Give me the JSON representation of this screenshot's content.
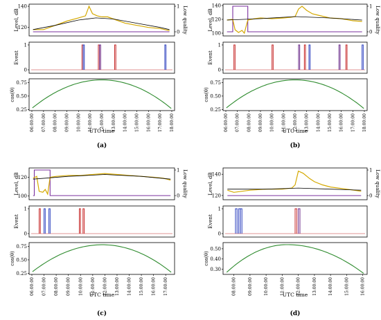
{
  "colors": {
    "level": "#d4a800",
    "trend": "#000000",
    "low_quality": "#7a2f9e",
    "event_red": "#c62828",
    "event_blue": "#2b3fbf",
    "event_purple": "#6a2a8a",
    "cos": "#2e8b2e",
    "frame": "#000000"
  },
  "chart_data": [
    {
      "label": "(a)",
      "type": "line",
      "xlabel": "UTC time",
      "time_start": 6.0,
      "time_end": 18.0,
      "ticks": [
        "06:00:00",
        "07:00:00",
        "08:00:00",
        "09:00:00",
        "10:00:00",
        "11:00:00",
        "12:00:00",
        "13:00:00",
        "14:00:00",
        "15:00:00",
        "16:00:00",
        "17:00:00",
        "18:00:00"
      ],
      "level": {
        "ylabel": "Level, dB",
        "ylim": [
          112,
          142
        ],
        "yticks": [
          120,
          140
        ],
        "y2label": "Low quality",
        "y2ticks": [
          0,
          1
        ],
        "series": [
          [
            6.1,
            118
          ],
          [
            7.0,
            118
          ],
          [
            8.0,
            122
          ],
          [
            9.0,
            126
          ],
          [
            10.0,
            129
          ],
          [
            10.6,
            131
          ],
          [
            10.9,
            140
          ],
          [
            11.2,
            133
          ],
          [
            11.6,
            131
          ],
          [
            12.0,
            130
          ],
          [
            12.5,
            130
          ],
          [
            13.0,
            128
          ],
          [
            14.0,
            124
          ],
          [
            15.0,
            122
          ],
          [
            16.0,
            120
          ],
          [
            17.0,
            119
          ],
          [
            17.8,
            117
          ]
        ],
        "trend": [
          [
            6.1,
            118
          ],
          [
            8.0,
            122
          ],
          [
            10.0,
            127
          ],
          [
            11.5,
            129
          ],
          [
            13.0,
            128
          ],
          [
            15.0,
            124
          ],
          [
            17.0,
            120
          ],
          [
            17.8,
            118
          ]
        ],
        "low_quality": [
          [
            6.1,
            0
          ],
          [
            17.8,
            0
          ]
        ]
      },
      "event": {
        "ylabel": "Event",
        "yticks": [
          0,
          1
        ],
        "events": [
          [
            10.3,
            10.4,
            "red"
          ],
          [
            10.4,
            10.5,
            "blue"
          ],
          [
            11.7,
            11.8,
            "red"
          ],
          [
            11.8,
            11.9,
            "purple"
          ],
          [
            13.1,
            13.2,
            "red"
          ],
          [
            17.4,
            17.5,
            "blue"
          ]
        ]
      },
      "cos": {
        "ylabel": "cos(θ)",
        "ylim": [
          0.23,
          0.82
        ],
        "yticks": [
          0.25,
          0.5,
          0.75
        ],
        "peak_time": 12.0,
        "peak": 0.8,
        "start": 0.28,
        "end": 0.27
      }
    },
    {
      "label": "(b)",
      "type": "line",
      "xlabel": "UTC time",
      "time_start": 6.0,
      "time_end": 18.0,
      "ticks": [
        "06:00:00",
        "07:00:00",
        "08:00:00",
        "09:00:00",
        "10:00:00",
        "11:00:00",
        "12:00:00",
        "13:00:00",
        "14:00:00",
        "15:00:00",
        "16:00:00",
        "17:00:00",
        "18:00:00"
      ],
      "level": {
        "ylabel": "Level, dB",
        "ylim": [
          96,
          142
        ],
        "yticks": [
          100,
          120,
          140
        ],
        "y2label": "Low quality",
        "y2ticks": [
          0,
          1
        ],
        "series": [
          [
            6.1,
            119
          ],
          [
            6.6,
            120
          ],
          [
            6.8,
            105
          ],
          [
            7.1,
            101
          ],
          [
            7.4,
            104
          ],
          [
            7.6,
            100
          ],
          [
            7.9,
            119
          ],
          [
            8.5,
            121
          ],
          [
            9.0,
            122
          ],
          [
            10.0,
            121
          ],
          [
            11.0,
            122
          ],
          [
            11.6,
            123
          ],
          [
            12.0,
            124
          ],
          [
            12.3,
            135
          ],
          [
            12.6,
            139
          ],
          [
            13.0,
            133
          ],
          [
            13.5,
            128
          ],
          [
            14.0,
            126
          ],
          [
            15.0,
            122
          ],
          [
            16.0,
            121
          ],
          [
            17.0,
            118
          ],
          [
            17.8,
            117
          ]
        ],
        "trend": [
          [
            6.1,
            119
          ],
          [
            9.0,
            121
          ],
          [
            12.0,
            124
          ],
          [
            15.0,
            122
          ],
          [
            17.8,
            119
          ]
        ],
        "low_quality": [
          [
            6.1,
            0
          ],
          [
            6.6,
            0
          ],
          [
            6.6,
            1
          ],
          [
            7.9,
            1
          ],
          [
            7.9,
            0
          ],
          [
            17.8,
            0
          ]
        ]
      },
      "event": {
        "ylabel": "Event",
        "yticks": [
          0,
          1
        ],
        "events": [
          [
            6.7,
            6.8,
            "red"
          ],
          [
            10.0,
            10.1,
            "red"
          ],
          [
            12.3,
            12.4,
            "purple"
          ],
          [
            12.8,
            12.9,
            "red"
          ],
          [
            13.2,
            13.3,
            "blue"
          ],
          [
            15.8,
            15.9,
            "purple"
          ],
          [
            16.4,
            16.5,
            "red"
          ],
          [
            17.8,
            17.9,
            "blue"
          ]
        ]
      },
      "cos": {
        "ylabel": "cos(θ)",
        "ylim": [
          0.23,
          0.82
        ],
        "yticks": [
          0.25,
          0.5,
          0.75
        ],
        "peak_time": 12.0,
        "peak": 0.8,
        "start": 0.28,
        "end": 0.27
      }
    },
    {
      "label": "(c)",
      "type": "line",
      "xlabel": "UTC time",
      "time_start": 6.0,
      "time_end": 17.5,
      "ticks": [
        "06:00:00",
        "07:00:00",
        "08:00:00",
        "09:00:00",
        "10:00:00",
        "11:00:00",
        "12:00:00",
        "13:00:00",
        "14:00:00",
        "15:00:00",
        "16:00:00",
        "17:00:00"
      ],
      "level": {
        "ylabel": "Level, dB",
        "ylim": [
          96,
          130
        ],
        "yticks": [
          100,
          120
        ],
        "y2label": "Low quality",
        "y2ticks": [
          0,
          1
        ],
        "series": [
          [
            6.1,
            119
          ],
          [
            6.4,
            121
          ],
          [
            6.6,
            105
          ],
          [
            6.9,
            104
          ],
          [
            7.1,
            107
          ],
          [
            7.3,
            102
          ],
          [
            7.5,
            120
          ],
          [
            8.0,
            121
          ],
          [
            9.0,
            122
          ],
          [
            10.0,
            122
          ],
          [
            11.0,
            123
          ],
          [
            12.0,
            124
          ],
          [
            13.0,
            123
          ],
          [
            14.0,
            122
          ],
          [
            15.0,
            121
          ],
          [
            16.0,
            120
          ],
          [
            16.8,
            119
          ],
          [
            17.4,
            117
          ]
        ],
        "trend": [
          [
            6.1,
            118
          ],
          [
            9.0,
            121
          ],
          [
            12.0,
            123
          ],
          [
            15.0,
            121
          ],
          [
            17.4,
            118
          ]
        ],
        "low_quality": [
          [
            6.1,
            0
          ],
          [
            6.2,
            0
          ],
          [
            6.2,
            1
          ],
          [
            7.5,
            1
          ],
          [
            7.5,
            0
          ],
          [
            17.4,
            0
          ]
        ]
      },
      "event": {
        "ylabel": "Event",
        "yticks": [
          0,
          1
        ],
        "events": [
          [
            6.6,
            6.7,
            "red"
          ],
          [
            7.0,
            7.1,
            "blue"
          ],
          [
            7.4,
            7.5,
            "blue"
          ],
          [
            9.9,
            10.0,
            "red"
          ],
          [
            10.2,
            10.3,
            "red"
          ]
        ]
      },
      "cos": {
        "ylabel": "cos(θ)",
        "ylim": [
          0.23,
          0.82
        ],
        "yticks": [
          0.25,
          0.5,
          0.75
        ],
        "peak_time": 11.8,
        "peak": 0.78,
        "start": 0.28,
        "end": 0.27
      }
    },
    {
      "label": "(d)",
      "type": "line",
      "xlabel": "UTC time",
      "time_start": 7.5,
      "time_end": 16.1,
      "ticks": [
        "08:00:00",
        "09:00:00",
        "10:00:00",
        "11:00:00",
        "12:00:00",
        "13:00:00",
        "14:00:00",
        "15:00:00",
        "16:00:00"
      ],
      "level": {
        "ylabel": "Level, dB",
        "ylim": [
          116,
          146
        ],
        "yticks": [
          120,
          140
        ],
        "y2label": "Low quality",
        "y2ticks": [
          0,
          1
        ],
        "series": [
          [
            7.6,
            125
          ],
          [
            8.0,
            123
          ],
          [
            9.0,
            125
          ],
          [
            10.0,
            126
          ],
          [
            11.0,
            126
          ],
          [
            11.6,
            127
          ],
          [
            11.8,
            130
          ],
          [
            12.0,
            143
          ],
          [
            12.3,
            141
          ],
          [
            12.7,
            136
          ],
          [
            13.0,
            133
          ],
          [
            13.5,
            130
          ],
          [
            14.0,
            128
          ],
          [
            15.0,
            126
          ],
          [
            15.9,
            124
          ]
        ],
        "trend": [
          [
            7.6,
            126
          ],
          [
            10.0,
            126
          ],
          [
            12.0,
            127
          ],
          [
            14.0,
            126
          ],
          [
            15.9,
            125
          ]
        ],
        "low_quality": [
          [
            7.6,
            0
          ],
          [
            15.9,
            0
          ]
        ]
      },
      "event": {
        "ylabel": "Event",
        "yticks": [
          0,
          1
        ],
        "events": [
          [
            8.1,
            8.2,
            "blue"
          ],
          [
            8.3,
            8.4,
            "blue"
          ],
          [
            8.4,
            8.5,
            "blue"
          ],
          [
            11.8,
            11.9,
            "red"
          ],
          [
            12.0,
            12.1,
            "purple"
          ]
        ]
      },
      "cos": {
        "ylabel": "cos(θ)",
        "ylim": [
          0.25,
          0.56
        ],
        "yticks": [
          0.3,
          0.4,
          0.5
        ],
        "peak_time": 11.3,
        "peak": 0.54,
        "start": 0.27,
        "end": 0.26
      }
    }
  ]
}
